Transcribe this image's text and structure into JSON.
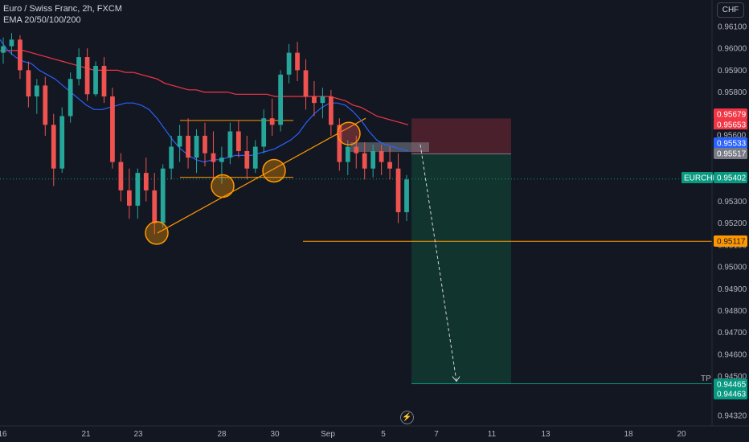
{
  "header": {
    "title": "Euro / Swiss Franc, 2h, FXCM",
    "indicator": "EMA 20/50/100/200",
    "currency_button": "CHF"
  },
  "colors": {
    "background": "#131722",
    "up_candle": "#26a69a",
    "down_candle": "#ef5350",
    "ema_blue": "#2962ff",
    "ema_red": "#f23645",
    "annotation_orange": "#ff9800",
    "stop_zone": "#5c2430",
    "target_zone": "#123731"
  },
  "chart_data": {
    "type": "candlestick",
    "symbol": "EURCHF",
    "y_ticks": [
      0.961,
      0.96,
      0.959,
      0.958,
      0.956,
      0.953,
      0.952,
      0.951,
      0.95,
      0.949,
      0.948,
      0.947,
      0.946,
      0.945,
      0.9432
    ],
    "ylim": [
      0.9431,
      0.9616
    ],
    "x_ticks": [
      "16",
      "21",
      "23",
      "28",
      "30",
      "Sep",
      "5",
      "7",
      "11",
      "13",
      "18",
      "20"
    ],
    "price_tags": [
      {
        "label": "0.95679",
        "value": 0.95679,
        "color": "#f23645",
        "text_color": "#ffffff"
      },
      {
        "label": "0.95653",
        "value": 0.95653,
        "color": "#f23645",
        "text_color": "#ffffff"
      },
      {
        "label": "0.95600",
        "value": 0.956,
        "color": "#131722",
        "text_color": "#b2b5be"
      },
      {
        "label": "0.95533",
        "value": 0.95533,
        "color": "#2962ff",
        "text_color": "#ffffff"
      },
      {
        "label": "0.95517",
        "value": 0.95517,
        "color": "#787b86",
        "text_color": "#ffffff"
      },
      {
        "label": "0.95402",
        "value": 0.95402,
        "color": "#089981",
        "text_color": "#ffffff",
        "symbol_label": "EURCHF"
      },
      {
        "label": "0.95117",
        "value": 0.95117,
        "color": "#ff9800",
        "text_color": "#131722"
      },
      {
        "label": "0.94465",
        "value": 0.94465,
        "color": "#089981",
        "text_color": "#ffffff",
        "note": "TP"
      },
      {
        "label": "0.94463",
        "value": 0.94463,
        "color": "#089981",
        "text_color": "#ffffff"
      }
    ],
    "current_price": 0.95402,
    "support_level": 0.95117,
    "range_top": 0.9567,
    "range_bottom": 0.9541,
    "position": {
      "entry": 0.95517,
      "stop": 0.95679,
      "target": 0.94465,
      "target_label": "TP"
    },
    "ema_fast": [
      0.9604,
      0.9599,
      0.9596,
      0.9594,
      0.9593,
      0.959,
      0.9588,
      0.9586,
      0.9583,
      0.958,
      0.9577,
      0.9574,
      0.9572,
      0.9572,
      0.9573,
      0.9574,
      0.9575,
      0.9575,
      0.9574,
      0.9572,
      0.9568,
      0.9563,
      0.9558,
      0.9554,
      0.9551,
      0.9549,
      0.9548,
      0.9549,
      0.9549,
      0.955,
      0.9551,
      0.9551,
      0.9551,
      0.9552,
      0.9553,
      0.9554,
      0.9556,
      0.9558,
      0.9561,
      0.9566,
      0.957,
      0.9573,
      0.9575,
      0.9575,
      0.9574,
      0.9571,
      0.9567,
      0.9562,
      0.9558,
      0.9556,
      0.9555,
      0.9554,
      0.9553
    ],
    "ema_slow": [
      0.9599,
      0.9599,
      0.9599,
      0.9599,
      0.9598,
      0.9597,
      0.9596,
      0.9595,
      0.9594,
      0.9593,
      0.9592,
      0.9591,
      0.959,
      0.959,
      0.959,
      0.959,
      0.9589,
      0.9589,
      0.9588,
      0.9587,
      0.9586,
      0.9584,
      0.9583,
      0.9582,
      0.9581,
      0.9581,
      0.958,
      0.958,
      0.958,
      0.958,
      0.9579,
      0.9579,
      0.9579,
      0.9579,
      0.9579,
      0.9578,
      0.9578,
      0.9578,
      0.9578,
      0.9578,
      0.9578,
      0.9578,
      0.9578,
      0.9577,
      0.9576,
      0.9574,
      0.9573,
      0.9571,
      0.9569,
      0.9568,
      0.9567,
      0.9566,
      0.9565
    ],
    "candles": [
      [
        0.9598,
        0.9605,
        0.9593,
        0.9601
      ],
      [
        0.9601,
        0.9607,
        0.9597,
        0.9604
      ],
      [
        0.9604,
        0.9606,
        0.9586,
        0.959
      ],
      [
        0.959,
        0.9594,
        0.9573,
        0.9578
      ],
      [
        0.9578,
        0.9586,
        0.957,
        0.9583
      ],
      [
        0.9583,
        0.9587,
        0.956,
        0.9565
      ],
      [
        0.9565,
        0.957,
        0.9537,
        0.9545
      ],
      [
        0.9545,
        0.9573,
        0.9543,
        0.9569
      ],
      [
        0.9569,
        0.9589,
        0.9566,
        0.9586
      ],
      [
        0.9586,
        0.96,
        0.9583,
        0.9596
      ],
      [
        0.9596,
        0.96,
        0.9576,
        0.9579
      ],
      [
        0.9579,
        0.9594,
        0.9578,
        0.9592
      ],
      [
        0.9592,
        0.9596,
        0.9575,
        0.9578
      ],
      [
        0.9578,
        0.9582,
        0.9545,
        0.9548
      ],
      [
        0.9548,
        0.9552,
        0.953,
        0.9535
      ],
      [
        0.9535,
        0.9545,
        0.9522,
        0.9528
      ],
      [
        0.9528,
        0.9545,
        0.9522,
        0.9543
      ],
      [
        0.9543,
        0.955,
        0.953,
        0.9535
      ],
      [
        0.9535,
        0.9543,
        0.9515,
        0.952
      ],
      [
        0.952,
        0.9547,
        0.9518,
        0.9545
      ],
      [
        0.9545,
        0.956,
        0.954,
        0.9555
      ],
      [
        0.9555,
        0.9565,
        0.9548,
        0.956
      ],
      [
        0.956,
        0.9568,
        0.9545,
        0.955
      ],
      [
        0.955,
        0.9563,
        0.9543,
        0.956
      ],
      [
        0.956,
        0.9566,
        0.9546,
        0.9552
      ],
      [
        0.9552,
        0.9562,
        0.954,
        0.9548
      ],
      [
        0.9548,
        0.9555,
        0.9538,
        0.955
      ],
      [
        0.955,
        0.9566,
        0.9547,
        0.9562
      ],
      [
        0.9562,
        0.9567,
        0.955,
        0.9553
      ],
      [
        0.9553,
        0.956,
        0.954,
        0.9545
      ],
      [
        0.9545,
        0.9558,
        0.9543,
        0.9555
      ],
      [
        0.9555,
        0.9572,
        0.9552,
        0.9568
      ],
      [
        0.9568,
        0.9577,
        0.956,
        0.9565
      ],
      [
        0.9565,
        0.959,
        0.9562,
        0.9588
      ],
      [
        0.9588,
        0.9602,
        0.9584,
        0.9598
      ],
      [
        0.9598,
        0.9603,
        0.9585,
        0.959
      ],
      [
        0.959,
        0.9595,
        0.9572,
        0.9578
      ],
      [
        0.9578,
        0.9585,
        0.9569,
        0.9575
      ],
      [
        0.9575,
        0.9582,
        0.9568,
        0.9578
      ],
      [
        0.9578,
        0.9581,
        0.956,
        0.9565
      ],
      [
        0.9565,
        0.9568,
        0.9544,
        0.9548
      ],
      [
        0.9548,
        0.9558,
        0.9542,
        0.9555
      ],
      [
        0.9555,
        0.956,
        0.9545,
        0.9552
      ],
      [
        0.9552,
        0.9557,
        0.954,
        0.9545
      ],
      [
        0.9545,
        0.9556,
        0.9541,
        0.9553
      ],
      [
        0.9553,
        0.9556,
        0.9542,
        0.9548
      ],
      [
        0.9548,
        0.9555,
        0.954,
        0.9545
      ],
      [
        0.9545,
        0.9552,
        0.952,
        0.9525
      ],
      [
        0.9525,
        0.9542,
        0.9521,
        0.954
      ]
    ]
  }
}
